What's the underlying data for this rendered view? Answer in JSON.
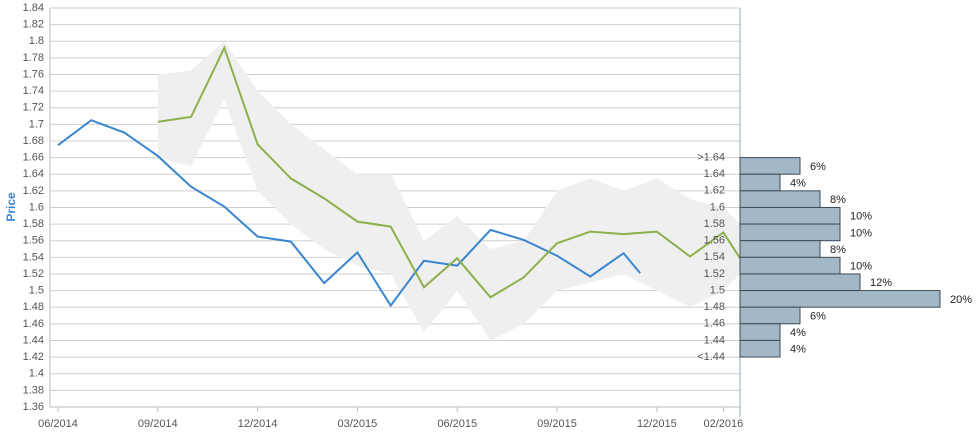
{
  "chart_data": [
    {
      "type": "line",
      "y_label": "Price",
      "xlim": [
        -0.24,
        20.5
      ],
      "xticks": [
        {
          "value": 0,
          "label": "06/2014"
        },
        {
          "value": 3,
          "label": "09/2014"
        },
        {
          "value": 6,
          "label": "12/2014"
        },
        {
          "value": 9,
          "label": "03/2015"
        },
        {
          "value": 12,
          "label": "06/2015"
        },
        {
          "value": 15,
          "label": "09/2015"
        },
        {
          "value": 18,
          "label": "12/2015"
        },
        {
          "value": 20,
          "label": "02/2016"
        }
      ],
      "ylim": [
        1.36,
        1.84
      ],
      "yticks": [
        1.36,
        1.38,
        {
          "value": 1.4,
          "label": "1.4"
        },
        1.42,
        1.44,
        1.46,
        1.48,
        {
          "value": 1.5,
          "label": "1.5"
        },
        1.52,
        1.54,
        1.56,
        1.58,
        {
          "value": 1.6,
          "label": "1.6"
        },
        1.62,
        1.64,
        1.66,
        1.68,
        {
          "value": 1.7,
          "label": "1.7"
        },
        1.72,
        1.74,
        1.76,
        1.78,
        {
          "value": 1.8,
          "label": "1.8"
        },
        1.82,
        1.84
      ],
      "grid": true,
      "band": {
        "color": "#efefef",
        "x": [
          3,
          4,
          5,
          6,
          7,
          8,
          9,
          10,
          11,
          12,
          13,
          14,
          15,
          16,
          17,
          18,
          19,
          20,
          20.5
        ],
        "upper": [
          1.76,
          1.765,
          1.8,
          1.74,
          1.7,
          1.67,
          1.64,
          1.64,
          1.56,
          1.59,
          1.55,
          1.56,
          1.62,
          1.635,
          1.62,
          1.635,
          1.61,
          1.6,
          1.58
        ],
        "lower": [
          1.66,
          1.65,
          1.73,
          1.62,
          1.58,
          1.55,
          1.53,
          1.52,
          1.45,
          1.5,
          1.44,
          1.46,
          1.5,
          1.51,
          1.52,
          1.5,
          1.48,
          1.5,
          1.52
        ]
      },
      "series": [
        {
          "color": "#3a85d0",
          "x": [
            0,
            1,
            2,
            3,
            4,
            5,
            6,
            7,
            8,
            9,
            10,
            11,
            12,
            13,
            14,
            15,
            16,
            17,
            17.5
          ],
          "values": [
            1.675,
            1.705,
            1.69,
            1.662,
            1.625,
            1.601,
            1.565,
            1.559,
            1.509,
            1.546,
            1.482,
            1.536,
            1.53,
            1.573,
            1.561,
            1.542,
            1.517,
            1.545,
            1.521
          ]
        },
        {
          "color": "#8db04a",
          "x": [
            3,
            4,
            5,
            6,
            7,
            8,
            9,
            10,
            11,
            12,
            13,
            14,
            15,
            16,
            17,
            18,
            19,
            20,
            20.5
          ],
          "values": [
            1.703,
            1.709,
            1.792,
            1.676,
            1.635,
            1.611,
            1.583,
            1.577,
            1.504,
            1.539,
            1.492,
            1.516,
            1.557,
            1.571,
            1.568,
            1.571,
            1.541,
            1.57,
            1.539
          ]
        }
      ]
    },
    {
      "type": "histogram",
      "bins": [
        ">1.64",
        "1.64",
        "1.62",
        "1.6",
        "1.58",
        "1.56",
        "1.54",
        "1.52",
        "1.5",
        "1.48",
        "1.46",
        "1.44",
        "<1.44"
      ],
      "values": [
        6,
        4,
        8,
        10,
        10,
        8,
        10,
        12,
        20,
        6,
        4,
        4
      ],
      "value_labels": [
        "6%",
        "4%",
        "8%",
        "10%",
        "10%",
        "8%",
        "10%",
        "12%",
        "20%",
        "6%",
        "4%",
        "4%"
      ],
      "color": "#a3b8c7"
    }
  ]
}
